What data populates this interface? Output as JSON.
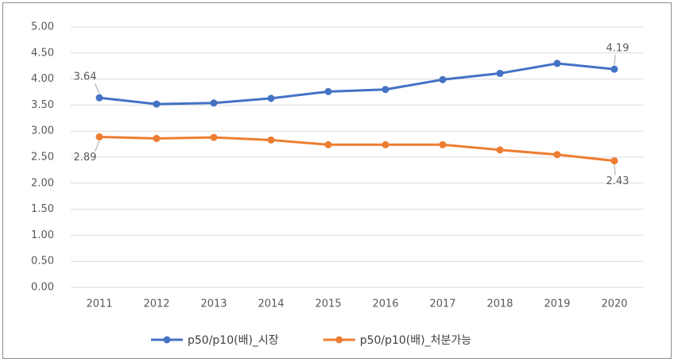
{
  "chart_data": {
    "type": "line",
    "categories": [
      "2011",
      "2012",
      "2013",
      "2014",
      "2015",
      "2016",
      "2017",
      "2018",
      "2019",
      "2020"
    ],
    "series": [
      {
        "name": "p50/p10(배)_시장",
        "color": "#4472c4",
        "values": [
          3.64,
          3.52,
          3.54,
          3.63,
          3.76,
          3.8,
          3.99,
          4.11,
          4.3,
          4.19
        ],
        "value_labels": [
          "3.64",
          null,
          null,
          null,
          null,
          null,
          null,
          null,
          null,
          "4.19"
        ]
      },
      {
        "name": "p50/p10(배)_처분가능",
        "color": "#ed7d31",
        "values": [
          2.89,
          2.86,
          2.88,
          2.83,
          2.74,
          2.74,
          2.74,
          2.64,
          2.55,
          2.43
        ],
        "value_labels": [
          "2.89",
          null,
          null,
          null,
          null,
          null,
          null,
          null,
          null,
          "2.43"
        ]
      }
    ],
    "ylim": [
      0,
      5
    ],
    "yticks": [
      {
        "value": 0,
        "label": "0.00"
      },
      {
        "value": 0.5,
        "label": "0.50"
      },
      {
        "value": 1,
        "label": "1.00"
      },
      {
        "value": 1.5,
        "label": "1.50"
      },
      {
        "value": 2,
        "label": "2.00"
      },
      {
        "value": 2.5,
        "label": "2.50"
      },
      {
        "value": 3,
        "label": "3.00"
      },
      {
        "value": 3.5,
        "label": "3.50"
      },
      {
        "value": 4,
        "label": "4.00"
      },
      {
        "value": 4.5,
        "label": "4.50"
      },
      {
        "value": 5,
        "label": "5.00"
      }
    ],
    "grid": true,
    "legend": "bottom"
  }
}
